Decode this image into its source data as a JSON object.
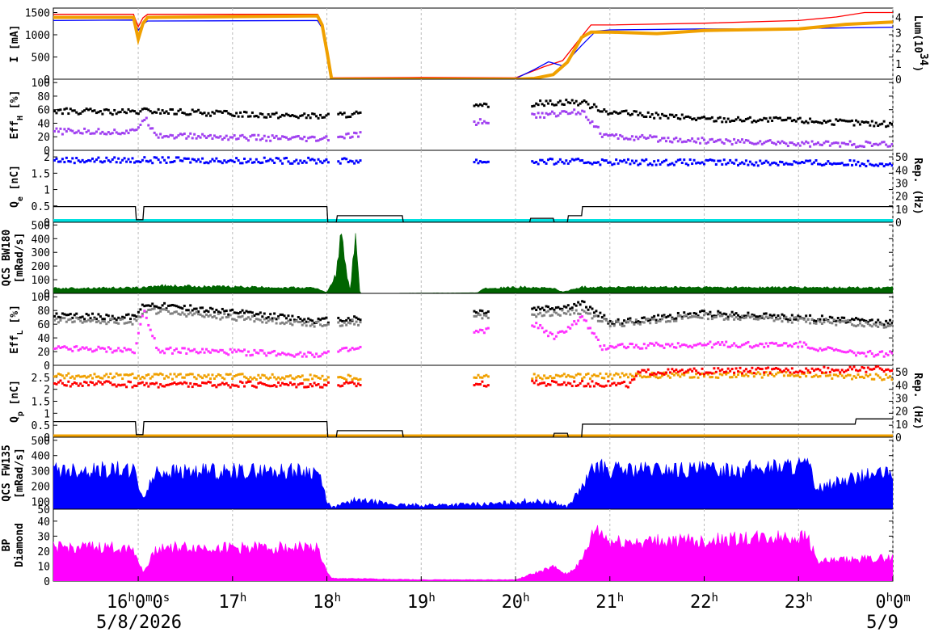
{
  "chart_data": {
    "type": "line",
    "time_axis": {
      "ticks": [
        {
          "h": "16",
          "m": "0",
          "s": "0"
        },
        {
          "h": "17"
        },
        {
          "h": "18"
        },
        {
          "h": "19"
        },
        {
          "h": "20"
        },
        {
          "h": "21"
        },
        {
          "h": "22"
        },
        {
          "h": "23"
        },
        {
          "h": "0",
          "m": "0"
        }
      ],
      "tick_hours": [
        16,
        17,
        18,
        19,
        20,
        21,
        22,
        23,
        24
      ],
      "range_hours": [
        15.1,
        24
      ],
      "date_left": "5/8/2026",
      "date_right": "5/9",
      "grid": true
    },
    "panels": [
      {
        "id": "current",
        "ylabel": "I [mA]",
        "ylabel_main": "I [mA]",
        "yticks": [
          "0",
          "500",
          "1000",
          "1500"
        ],
        "ytick_values": [
          0,
          500,
          1000,
          1500
        ],
        "ylim": [
          0,
          1600
        ],
        "right_label_main": "Lum(10",
        "right_label_sup": "34",
        "right_label_end": ")",
        "right_ticks": [
          "0",
          "1",
          "2",
          "3",
          "4"
        ],
        "right_tick_values": [
          0,
          1,
          2,
          3,
          4
        ],
        "right_lim": [
          0,
          4.6
        ],
        "series": [
          {
            "color": "#ff0000",
            "style": "line",
            "x": [
              15.1,
              15.95,
              16.0,
              16.05,
              16.1,
              17.9,
              17.95,
              18.0,
              18.05,
              19.0,
              20.0,
              20.3,
              20.5,
              20.7,
              20.8,
              21.0,
              22.0,
              23.0,
              23.4,
              23.7,
              24.0
            ],
            "y": [
              1460,
              1460,
              1180,
              1380,
              1460,
              1460,
              1200,
              640,
              30,
              40,
              30,
              280,
              420,
              960,
              1220,
              1220,
              1260,
              1320,
              1400,
              1500,
              1500
            ]
          },
          {
            "color": "#0000ff",
            "style": "line",
            "x": [
              15.1,
              15.95,
              16.0,
              16.05,
              16.1,
              17.9,
              17.95,
              18.0,
              18.05,
              19.0,
              20.0,
              20.2,
              20.35,
              20.5,
              20.7,
              20.85,
              21.0,
              22.0,
              23.0,
              24.0
            ],
            "y": [
              1320,
              1330,
              1100,
              1240,
              1310,
              1320,
              1150,
              600,
              20,
              20,
              15,
              220,
              390,
              300,
              760,
              1080,
              1110,
              1130,
              1140,
              1170
            ]
          },
          {
            "color": "#f0a000",
            "style": "thick",
            "axis": "right",
            "x": [
              15.1,
              15.95,
              16.0,
              16.05,
              16.1,
              17.9,
              17.95,
              18.0,
              18.05,
              20.0,
              20.2,
              20.4,
              20.55,
              20.7,
              20.8,
              21.0,
              21.5,
              22.0,
              23.0,
              23.5,
              24.0
            ],
            "y": [
              4.0,
              4.0,
              2.6,
              3.6,
              4.0,
              4.1,
              3.5,
              1.8,
              0,
              0,
              0.05,
              0.3,
              1.1,
              2.7,
              3.05,
              3.05,
              2.95,
              3.15,
              3.25,
              3.55,
              3.7
            ]
          }
        ]
      },
      {
        "id": "effh",
        "ylabel_main": "Eff",
        "ylabel_sub": "H",
        "ylabel_end": " [%]",
        "yticks": [
          "0",
          "20",
          "40",
          "60",
          "80",
          "100"
        ],
        "ytick_values": [
          0,
          20,
          40,
          60,
          80,
          100
        ],
        "ylim": [
          0,
          105
        ],
        "series": [
          {
            "color": "#000000",
            "style": "scatter",
            "x": [
              15.1,
              15.95,
              16.05,
              17.9,
              20.55,
              20.7,
              21.0,
              22.0,
              23.0,
              24.0
            ],
            "y": [
              58,
              56,
              58,
              50,
              72,
              70,
              56,
              46,
              44,
              38
            ]
          },
          {
            "color": "#a040f0",
            "style": "scatter",
            "x": [
              15.1,
              15.95,
              16.05,
              16.2,
              17.9,
              20.55,
              20.7,
              20.9,
              21.0,
              22.0,
              23.0,
              24.0
            ],
            "y": [
              28,
              27,
              48,
              22,
              16,
              56,
              58,
              24,
              20,
              14,
              10,
              8
            ]
          }
        ]
      },
      {
        "id": "qe",
        "ylabel_main": "Q",
        "ylabel_sub": "e",
        "ylabel_end": " [nC]",
        "yticks": [
          "0",
          "0.5",
          "1",
          "1.5",
          "2"
        ],
        "ytick_values": [
          0,
          0.5,
          1,
          1.5,
          2
        ],
        "ylim": [
          0,
          2.2
        ],
        "right_label_main": "Rep. (Hz)",
        "right_ticks": [
          "0",
          "10",
          "20",
          "30",
          "40",
          "50"
        ],
        "right_tick_values": [
          0,
          10,
          20,
          30,
          40,
          50
        ],
        "right_lim": [
          0,
          55
        ],
        "series": [
          {
            "color": "#0000ff",
            "style": "scatter",
            "x": [
              15.1,
              15.95,
              16.05,
              17.9,
              20.6,
              24.0
            ],
            "y": [
              1.9,
              1.9,
              1.9,
              1.88,
              1.85,
              1.8
            ]
          },
          {
            "color": "#00e0e0",
            "style": "thick",
            "x": [
              15.1,
              24.0
            ],
            "y": [
              0.05,
              0.05
            ]
          },
          {
            "color": "#000000",
            "style": "line",
            "axis": "right",
            "x": [
              15.1,
              15.97,
              15.98,
              16.05,
              16.06,
              18.0,
              18.01,
              18.1,
              18.11,
              18.8,
              18.81,
              20.15,
              20.16,
              20.4,
              20.41,
              20.55,
              20.56,
              20.7,
              20.71,
              24.0
            ],
            "y": [
              12,
              12,
              2,
              2,
              12,
              12,
              0,
              0,
              5,
              5,
              0,
              0,
              3,
              3,
              0,
              0,
              5,
              5,
              12,
              12
            ]
          }
        ]
      },
      {
        "id": "qcs_bw",
        "ylabel_main": "QCS BW180",
        "ylabel_line2": "[mRad/s]",
        "yticks": [
          "0",
          "100",
          "200",
          "300",
          "400",
          "500"
        ],
        "ytick_values": [
          0,
          100,
          200,
          300,
          400,
          500
        ],
        "ylim": [
          0,
          520
        ],
        "series": [
          {
            "color": "#006400",
            "style": "fill",
            "x": [
              15.1,
              16.05,
              16.2,
              17.9,
              18.0,
              18.1,
              18.15,
              18.2,
              18.25,
              18.3,
              18.35,
              19.6,
              19.65,
              20.1,
              20.4,
              20.5,
              20.7,
              24.0
            ],
            "y": [
              40,
              45,
              60,
              42,
              5,
              150,
              500,
              200,
              10,
              470,
              0,
              5,
              40,
              50,
              40,
              10,
              50,
              45
            ]
          }
        ]
      },
      {
        "id": "effl",
        "ylabel_main": "Eff",
        "ylabel_sub": "L",
        "ylabel_end": " [%]",
        "yticks": [
          "0",
          "20",
          "40",
          "60",
          "80",
          "100"
        ],
        "ytick_values": [
          0,
          20,
          40,
          60,
          80,
          100
        ],
        "ylim": [
          0,
          105
        ],
        "series": [
          {
            "color": "#000000",
            "style": "scatter",
            "x": [
              15.1,
              15.95,
              16.05,
              17.9,
              20.55,
              20.7,
              21.0,
              22.0,
              23.0,
              24.0
            ],
            "y": [
              72,
              70,
              90,
              65,
              85,
              90,
              62,
              76,
              70,
              62
            ]
          },
          {
            "color": "#808080",
            "style": "scatter",
            "x": [
              15.1,
              15.95,
              16.05,
              17.9,
              20.7,
              21.0,
              22.0,
              23.0,
              24.0
            ],
            "y": [
              66,
              64,
              80,
              60,
              78,
              60,
              72,
              66,
              58
            ]
          },
          {
            "color": "#ff30ff",
            "style": "scatter",
            "x": [
              15.1,
              15.95,
              16.05,
              16.2,
              17.9,
              20.2,
              20.4,
              20.7,
              20.9,
              21.0,
              22.0,
              23.0,
              23.5,
              24.0
            ],
            "y": [
              24,
              22,
              80,
              22,
              16,
              60,
              40,
              70,
              25,
              28,
              30,
              30,
              18,
              16
            ]
          }
        ]
      },
      {
        "id": "qp",
        "ylabel_main": "Q",
        "ylabel_sub": "p",
        "ylabel_end": " [nC]",
        "yticks": [
          "0",
          "0.5",
          "1",
          "1.5",
          "2",
          "2.5"
        ],
        "ytick_values": [
          0,
          0.5,
          1,
          1.5,
          2,
          2.5
        ],
        "ylim": [
          0,
          3.0
        ],
        "right_label_main": "Rep. (Hz)",
        "right_ticks": [
          "0",
          "10",
          "20",
          "30",
          "40",
          "50"
        ],
        "right_tick_values": [
          0,
          10,
          20,
          30,
          40,
          50
        ],
        "right_lim": [
          0,
          55
        ],
        "series": [
          {
            "color": "#f0a000",
            "style": "scatter",
            "x": [
              15.1,
              15.95,
              16.05,
              17.9,
              20.6,
              21.2,
              22.0,
              23.0,
              24.0
            ],
            "y": [
              2.55,
              2.55,
              2.55,
              2.5,
              2.55,
              2.55,
              2.6,
              2.6,
              2.5
            ]
          },
          {
            "color": "#ff0000",
            "style": "scatter",
            "x": [
              15.1,
              15.95,
              16.05,
              17.9,
              20.6,
              21.2,
              21.3,
              22.0,
              23.0,
              24.0
            ],
            "y": [
              2.25,
              2.2,
              2.2,
              2.2,
              2.25,
              2.2,
              2.7,
              2.75,
              2.8,
              2.85
            ]
          },
          {
            "color": "#f0a000",
            "style": "thick",
            "x": [
              15.1,
              24.0
            ],
            "y": [
              0.05,
              0.05
            ]
          },
          {
            "color": "#000000",
            "style": "line",
            "axis": "right",
            "x": [
              15.1,
              15.97,
              15.98,
              16.05,
              16.06,
              18.0,
              18.01,
              18.1,
              18.11,
              18.8,
              18.81,
              20.4,
              20.41,
              20.55,
              20.56,
              20.7,
              20.71,
              23.6,
              23.61,
              24.0
            ],
            "y": [
              12,
              12,
              2,
              2,
              12,
              12,
              0,
              0,
              5,
              5,
              0,
              0,
              3,
              3,
              0,
              0,
              10,
              10,
              14,
              14
            ]
          }
        ]
      },
      {
        "id": "qcs_fw",
        "ylabel_main": "QCS FW135",
        "ylabel_line2": "[mRad/s]",
        "yticks": [
          "50",
          "100",
          "200",
          "300",
          "400",
          "500"
        ],
        "ytick_values": [
          50,
          100,
          200,
          300,
          400,
          500
        ],
        "ylim": [
          50,
          520
        ],
        "series": [
          {
            "color": "#0000ff",
            "style": "fill",
            "x": [
              15.1,
              15.95,
              16.05,
              16.2,
              17.9,
              18.0,
              18.05,
              18.3,
              18.8,
              19.8,
              20.1,
              20.4,
              20.55,
              20.7,
              20.85,
              21.0,
              22.0,
              22.5,
              23.0,
              23.1,
              23.2,
              23.5,
              23.8,
              24.0
            ],
            "y": [
              330,
              330,
              130,
              320,
              320,
              110,
              60,
              120,
              80,
              90,
              110,
              100,
              70,
              200,
              360,
              330,
              330,
              340,
              360,
              360,
              200,
              260,
              300,
              300
            ]
          }
        ]
      },
      {
        "id": "bp_diamond",
        "ylabel_main": "BP",
        "ylabel_line2": "Diamond",
        "yticks": [
          "0",
          "10",
          "20",
          "30",
          "40"
        ],
        "ytick_values": [
          0,
          10,
          20,
          30,
          40
        ],
        "ylim": [
          0,
          48
        ],
        "series": [
          {
            "color": "#ff00ff",
            "style": "fill",
            "x": [
              15.1,
              15.95,
              16.05,
              16.2,
              17.9,
              18.0,
              18.05,
              19.0,
              20.0,
              20.4,
              20.55,
              20.7,
              20.85,
              21.0,
              22.0,
              23.0,
              23.1,
              23.2,
              24.0
            ],
            "y": [
              24,
              24,
              6,
              24,
              24,
              6,
              2,
              1,
              1,
              10,
              5,
              14,
              38,
              28,
              29,
              32,
              32,
              14,
              17
            ]
          }
        ]
      }
    ]
  }
}
